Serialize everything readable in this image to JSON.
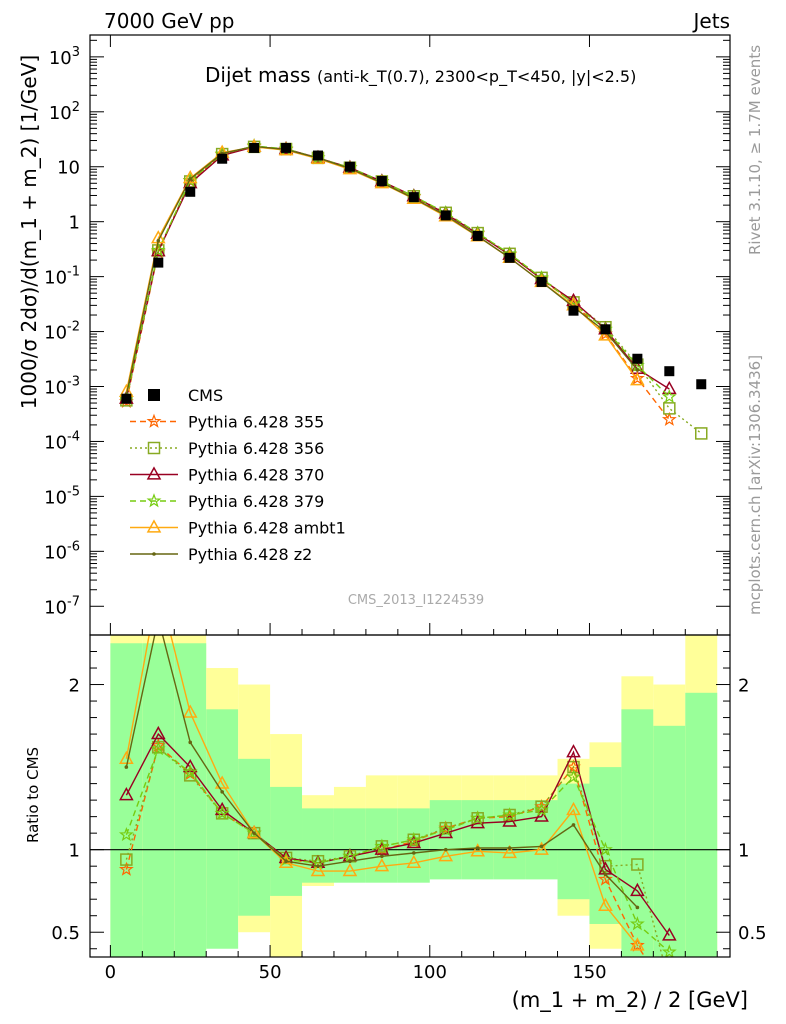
{
  "header": {
    "left": "7000 GeV pp",
    "right": "Jets"
  },
  "side": {
    "rivet": "Rivet 3.1.10, ≥ 1.7M events",
    "site": "mcplots.cern.ch [arXiv:1306.3436]"
  },
  "main": {
    "ylabel": "1000/σ 2dσ)/d(m_1 + m_2) [1/GeV]",
    "analysis_id": "CMS_2013_I1224539"
  },
  "ratio": {
    "ylabel": "Ratio to CMS"
  },
  "colors": {
    "data": "#000000",
    "p355": "#ff6600",
    "p356": "#88aa22",
    "p370": "#990022",
    "p379": "#77cc11",
    "ambt1": "#ffaa11",
    "z2": "#666611",
    "band_inner": "#99ff99",
    "band_outer": "#ffff99"
  },
  "chart_data": {
    "type": "line",
    "title": "Dijet mass",
    "title_tail": "(anti-k_T(0.7), 2300<p_T<450, |y|<2.5)",
    "xlabel": "(m_1 + m_2) / 2 [GeV]",
    "ylabel": "1000/σ 2dσ)/d(m_1 + m_2) [1/GeV]",
    "xlim": [
      -2,
      194
    ],
    "ylim": [
      3e-08,
      2500
    ],
    "yscale": "log",
    "ratio_ylim": [
      0.35,
      2.3
    ],
    "x_ticks": [
      "0",
      "50",
      "100",
      "150"
    ],
    "y_ticks": [
      "10^-7",
      "10^-6",
      "10^-5",
      "10^-4",
      "10^-3",
      "10^-2",
      "10^-1",
      "1",
      "10",
      "10^2",
      "10^3"
    ],
    "ratio_ticks": [
      "0.5",
      "1",
      "2"
    ],
    "legend_position": "center-left",
    "x": [
      5,
      15,
      25,
      35,
      45,
      55,
      65,
      75,
      85,
      95,
      105,
      115,
      125,
      135,
      145,
      155,
      165,
      175,
      185
    ],
    "data": {
      "name": "CMS",
      "values": [
        0.0006,
        0.18,
        3.5,
        14,
        22,
        22,
        16,
        10,
        5.5,
        2.8,
        1.3,
        0.55,
        0.22,
        0.08,
        0.024,
        0.011,
        0.0032,
        0.0019,
        0.0011
      ],
      "band_inner": [
        [
          0.35,
          2.25
        ],
        [
          0.35,
          2.25
        ],
        [
          0.35,
          2.25
        ],
        [
          0.4,
          1.85
        ],
        [
          0.6,
          1.55
        ],
        [
          0.72,
          1.38
        ],
        [
          0.8,
          1.25
        ],
        [
          0.8,
          1.25
        ],
        [
          0.8,
          1.25
        ],
        [
          0.8,
          1.25
        ],
        [
          0.82,
          1.3
        ],
        [
          0.82,
          1.3
        ],
        [
          0.82,
          1.3
        ],
        [
          0.82,
          1.3
        ],
        [
          0.7,
          1.4
        ],
        [
          0.55,
          1.5
        ],
        [
          0.35,
          1.85
        ],
        [
          0.35,
          1.75
        ],
        [
          0.35,
          1.95
        ]
      ],
      "band_outer": [
        [
          0.35,
          2.3
        ],
        [
          0.6,
          2.3
        ],
        [
          0.35,
          2.3
        ],
        [
          0.65,
          2.1
        ],
        [
          0.5,
          2.0
        ],
        [
          0.35,
          1.7
        ],
        [
          0.78,
          1.33
        ],
        [
          0.84,
          1.38
        ],
        [
          0.84,
          1.45
        ],
        [
          0.84,
          1.45
        ],
        [
          0.84,
          1.45
        ],
        [
          0.84,
          1.45
        ],
        [
          0.84,
          1.45
        ],
        [
          0.84,
          1.45
        ],
        [
          0.6,
          1.55
        ],
        [
          0.4,
          1.65
        ],
        [
          0.35,
          2.05
        ],
        [
          0.35,
          2.0
        ],
        [
          0.35,
          2.3
        ]
      ]
    },
    "series": [
      {
        "name": "Pythia 6.428 355",
        "values": [
          0.00053,
          0.28,
          5.5,
          16.5,
          23.5,
          20.5,
          14.5,
          9.5,
          5.3,
          2.8,
          1.4,
          0.6,
          0.25,
          0.09,
          0.033,
          0.009,
          0.0014,
          0.00025,
          null
        ],
        "ratio": [
          0.88,
          1.63,
          1.46,
          1.22,
          1.1,
          0.94,
          0.92,
          0.96,
          1.0,
          1.05,
          1.13,
          1.19,
          1.2,
          1.26,
          1.5,
          0.82,
          0.42,
          0.12,
          null
        ]
      },
      {
        "name": "Pythia 6.428 356",
        "values": [
          0.00056,
          0.3,
          5.4,
          17,
          23,
          21,
          14.5,
          9.6,
          5.4,
          2.9,
          1.45,
          0.62,
          0.26,
          0.095,
          0.034,
          0.012,
          0.0025,
          0.0004,
          0.00014
        ],
        "ratio": [
          0.94,
          1.62,
          1.45,
          1.22,
          1.1,
          0.95,
          0.93,
          0.96,
          1.02,
          1.06,
          1.13,
          1.19,
          1.21,
          1.26,
          1.5,
          0.9,
          0.91,
          0.2,
          0.12
        ]
      },
      {
        "name": "Pythia 6.428 370",
        "values": [
          0.0006,
          0.29,
          5.0,
          16,
          23,
          21,
          14.5,
          9.6,
          5.4,
          2.9,
          1.4,
          0.6,
          0.25,
          0.09,
          0.036,
          0.011,
          0.0021,
          0.0009,
          null
        ],
        "ratio": [
          1.33,
          1.7,
          1.5,
          1.24,
          1.1,
          0.95,
          0.92,
          0.96,
          1.0,
          1.04,
          1.1,
          1.16,
          1.17,
          1.2,
          1.59,
          0.88,
          0.75,
          0.48,
          null
        ]
      },
      {
        "name": "Pythia 6.428 379",
        "values": [
          0.0006,
          0.3,
          5.6,
          17,
          24,
          21,
          14.5,
          9.6,
          5.4,
          2.9,
          1.45,
          0.62,
          0.26,
          0.095,
          0.032,
          0.011,
          0.0024,
          0.00065,
          null
        ],
        "ratio": [
          1.09,
          1.61,
          1.47,
          1.22,
          1.1,
          0.94,
          0.92,
          0.96,
          1.02,
          1.06,
          1.12,
          1.19,
          1.21,
          1.24,
          1.44,
          1.0,
          0.55,
          0.38,
          null
        ]
      },
      {
        "name": "Pythia 6.428 ambt1",
        "values": [
          0.0008,
          0.5,
          6.2,
          18,
          23,
          20,
          14,
          9.0,
          5.0,
          2.6,
          1.25,
          0.54,
          0.22,
          0.08,
          0.03,
          0.0085,
          0.0013,
          null,
          null
        ],
        "ratio": [
          1.55,
          2.6,
          1.83,
          1.4,
          1.1,
          0.92,
          0.87,
          0.87,
          0.9,
          0.92,
          0.96,
          0.99,
          0.98,
          1.0,
          1.24,
          0.66,
          0.42,
          null,
          null
        ]
      },
      {
        "name": "Pythia 6.428 z2",
        "values": [
          0.0007,
          0.45,
          6.0,
          17.5,
          23.5,
          20.5,
          14.5,
          9.3,
          5.1,
          2.65,
          1.3,
          0.55,
          0.22,
          0.08,
          0.028,
          0.01,
          0.002,
          null,
          null
        ],
        "ratio": [
          1.5,
          2.4,
          1.65,
          1.35,
          1.1,
          0.93,
          0.9,
          0.93,
          0.96,
          0.98,
          1.0,
          1.01,
          1.01,
          1.02,
          1.15,
          0.85,
          0.65,
          null,
          null
        ]
      }
    ]
  }
}
